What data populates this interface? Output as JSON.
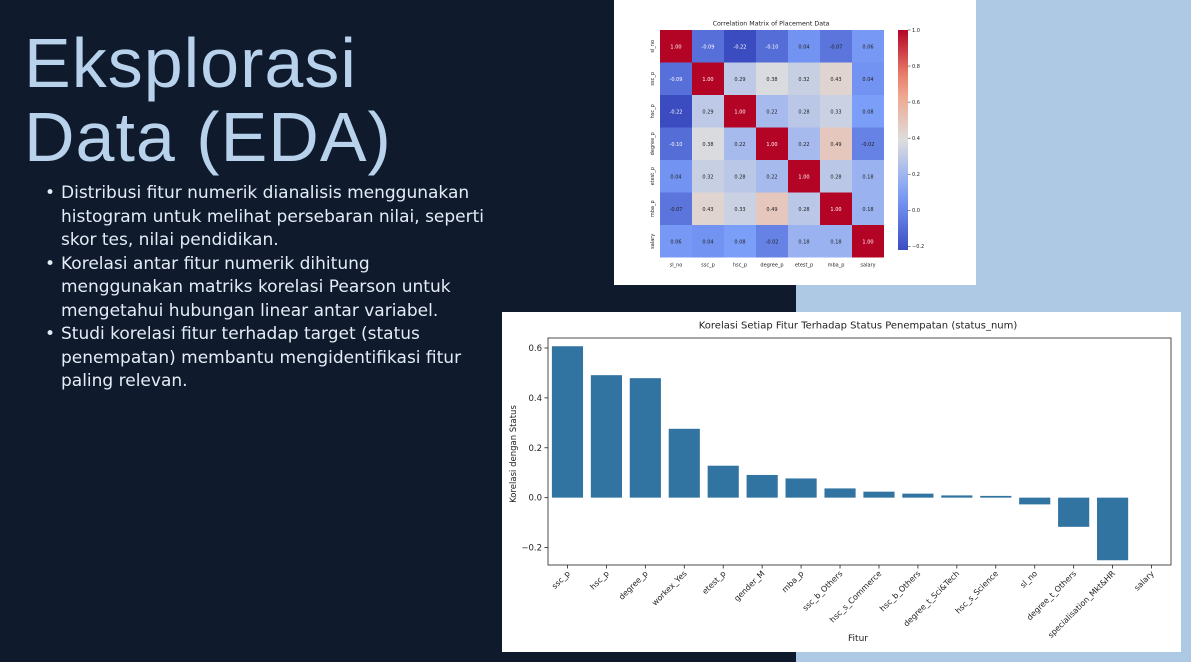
{
  "slide": {
    "title_line1": "Eksplorasi",
    "title_line2": "Data (EDA)",
    "bullets": [
      "Distribusi fitur numerik dianalisis menggunakan histogram untuk melihat persebaran nilai, seperti skor tes, nilai pendidikan.",
      "Korelasi antar fitur numerik dihitung menggunakan matriks korelasi Pearson untuk mengetahui hubungan linear antar variabel.",
      "Studi korelasi fitur terhadap target (status penempatan) membantu mengidentifikasi fitur paling relevan."
    ]
  },
  "colors": {
    "background": "#0f1a2d",
    "panel": "#adc9e3",
    "bar": "#3274a1",
    "title": "#b8d2ec",
    "text": "#e4ecf6"
  },
  "chart_data": [
    {
      "type": "heatmap",
      "title": "Correlation Matrix of Placement Data",
      "labels": [
        "sl_no",
        "ssc_p",
        "hsc_p",
        "degree_p",
        "etest_p",
        "mba_p",
        "salary"
      ],
      "matrix": [
        [
          1.0,
          -0.09,
          -0.22,
          -0.1,
          0.04,
          -0.07,
          0.06
        ],
        [
          -0.09,
          1.0,
          0.29,
          0.38,
          0.32,
          0.43,
          0.04
        ],
        [
          -0.22,
          0.29,
          1.0,
          0.22,
          0.28,
          0.33,
          0.08
        ],
        [
          -0.1,
          0.38,
          0.22,
          1.0,
          0.22,
          0.49,
          -0.02
        ],
        [
          0.04,
          0.32,
          0.28,
          0.22,
          1.0,
          0.28,
          0.18
        ],
        [
          -0.07,
          0.43,
          0.33,
          0.49,
          0.28,
          1.0,
          0.18
        ],
        [
          0.06,
          0.04,
          0.08,
          -0.02,
          0.18,
          0.18,
          1.0
        ]
      ],
      "colormap": "coolwarm",
      "vmin": -0.22,
      "vmax": 1.0,
      "colorbar_ticks": [
        1.0,
        0.8,
        0.6,
        0.4,
        0.2,
        0.0,
        -0.2
      ],
      "colorbar_tick_labels": [
        "1.0",
        "0.8",
        "0.6",
        "0.4",
        "0.2",
        "0.0",
        "−0.2"
      ]
    },
    {
      "type": "bar",
      "title": "Korelasi Setiap Fitur Terhadap Status Penempatan (status_num)",
      "xlabel": "Fitur",
      "ylabel": "Korelasi dengan Status",
      "categories": [
        "ssc_p",
        "hsc_p",
        "degree_p",
        "workex_Yes",
        "etest_p",
        "gender_M",
        "mba_p",
        "ssc_b_Others",
        "hsc_s_Commerce",
        "hsc_b_Others",
        "degree_t_Sci&Tech",
        "hsc_s_Science",
        "sl_no",
        "degree_t_Others",
        "specialisation_Mkt&HR",
        "salary"
      ],
      "values": [
        0.607,
        0.491,
        0.479,
        0.276,
        0.128,
        0.091,
        0.077,
        0.037,
        0.024,
        0.016,
        0.009,
        0.007,
        -0.027,
        -0.117,
        -0.251,
        null
      ],
      "ylim": [
        -0.27,
        0.64
      ],
      "yticks": [
        -0.2,
        0.0,
        0.2,
        0.4,
        0.6
      ],
      "ytick_labels": [
        "−0.2",
        "0.0",
        "0.2",
        "0.4",
        "0.6"
      ]
    }
  ]
}
